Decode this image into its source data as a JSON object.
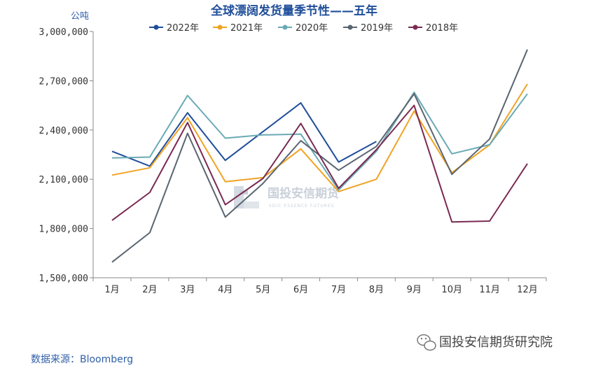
{
  "chart_data": {
    "type": "line",
    "title": "全球漂阔发货量季节性——五年",
    "ylabel": "公吨",
    "xlabel": "",
    "ylim": [
      1500000,
      3000000
    ],
    "yticks": [
      "3,000,000",
      "2,700,000",
      "2,400,000",
      "2,100,000",
      "1,800,000",
      "1,500,000"
    ],
    "categories": [
      "1月",
      "2月",
      "3月",
      "4月",
      "5月",
      "6月",
      "7月",
      "8月",
      "9月",
      "10月",
      "11月",
      "12月"
    ],
    "series": [
      {
        "name": "2022年",
        "color": "#1f4e9a",
        "values": [
          2270000,
          2180000,
          2505000,
          2215000,
          2390000,
          2565000,
          2205000,
          2330000,
          null,
          null,
          null,
          null
        ]
      },
      {
        "name": "2021年",
        "color": "#f0a323",
        "values": [
          2125000,
          2170000,
          2475000,
          2085000,
          2110000,
          2285000,
          2025000,
          2100000,
          2515000,
          2140000,
          2310000,
          2680000
        ]
      },
      {
        "name": "2020年",
        "color": "#6aaab6",
        "values": [
          2230000,
          2235000,
          2610000,
          2350000,
          2370000,
          2375000,
          2035000,
          2270000,
          2630000,
          2255000,
          2310000,
          2620000
        ]
      },
      {
        "name": "2019年",
        "color": "#5a6570",
        "values": [
          1595000,
          1775000,
          2380000,
          1870000,
          2075000,
          2335000,
          2155000,
          2300000,
          2620000,
          2130000,
          2345000,
          2890000
        ]
      },
      {
        "name": "2018年",
        "color": "#7a2a52",
        "values": [
          1850000,
          2020000,
          2445000,
          1945000,
          2105000,
          2440000,
          2045000,
          2280000,
          2550000,
          1840000,
          1845000,
          2195000
        ]
      }
    ],
    "grid": false,
    "legend": "top"
  },
  "unit_label": "公吨",
  "source": "数据来源：Bloomberg",
  "watermark": {
    "name": "国投安信期货",
    "sub": "SDIC ESSENCE FUTURES"
  },
  "brand": "国投安信期货研究院"
}
